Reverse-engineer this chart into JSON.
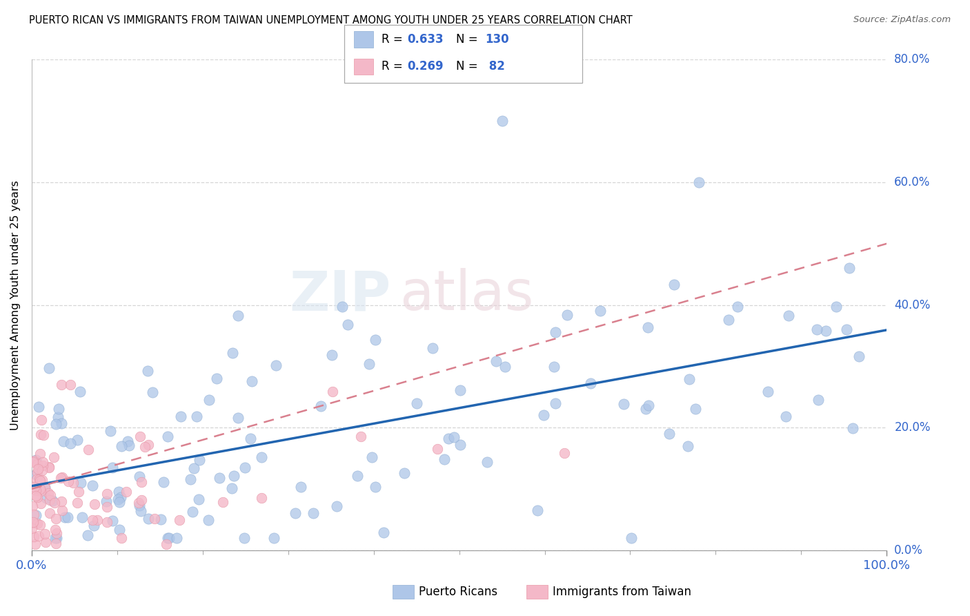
{
  "title": "PUERTO RICAN VS IMMIGRANTS FROM TAIWAN UNEMPLOYMENT AMONG YOUTH UNDER 25 YEARS CORRELATION CHART",
  "source": "Source: ZipAtlas.com",
  "ylabel": "Unemployment Among Youth under 25 years",
  "yticks_labels": [
    "0.0%",
    "20.0%",
    "40.0%",
    "60.0%",
    "80.0%"
  ],
  "ytick_vals": [
    0,
    20,
    40,
    60,
    80
  ],
  "legend_r1": "R = 0.633",
  "legend_n1": "N = 130",
  "legend_r2": "R = 0.269",
  "legend_n2": "N =  82",
  "blue_color": "#aec6e8",
  "pink_color": "#f4b8c8",
  "blue_line_color": "#2265b0",
  "pink_line_color": "#d9808e",
  "watermark_zip": "ZIP",
  "watermark_atlas": "atlas",
  "figsize": [
    14.06,
    8.92
  ],
  "dpi": 100,
  "seed": 12345
}
